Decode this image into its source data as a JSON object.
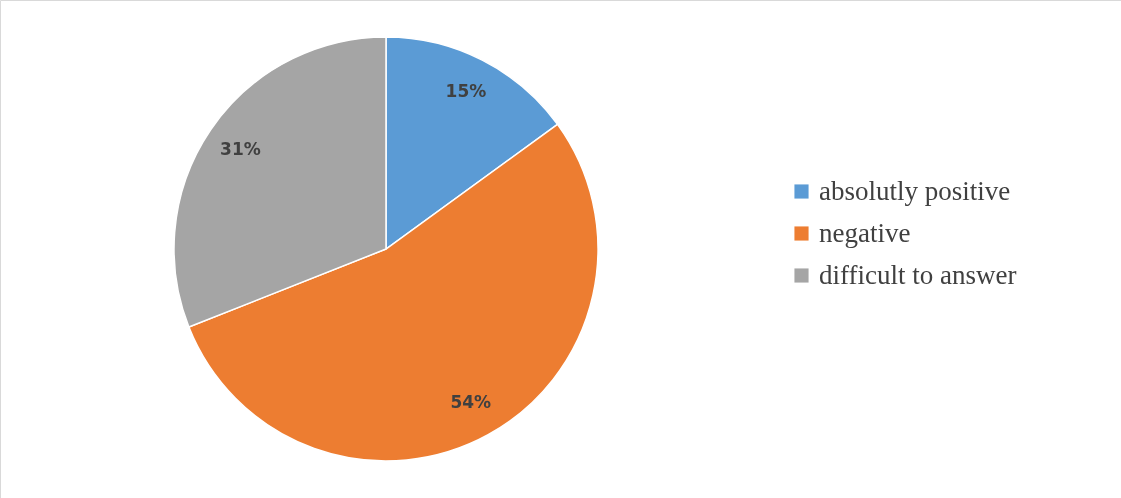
{
  "chart_data": {
    "type": "pie",
    "categories": [
      "absolutly positive",
      "negative",
      "difficult to answer"
    ],
    "values": [
      15,
      54,
      31
    ],
    "colors": [
      "#5b9bd5",
      "#ed7d31",
      "#a5a5a5"
    ],
    "value_labels": [
      "15%",
      "54%",
      "31%"
    ],
    "legend": "right"
  }
}
